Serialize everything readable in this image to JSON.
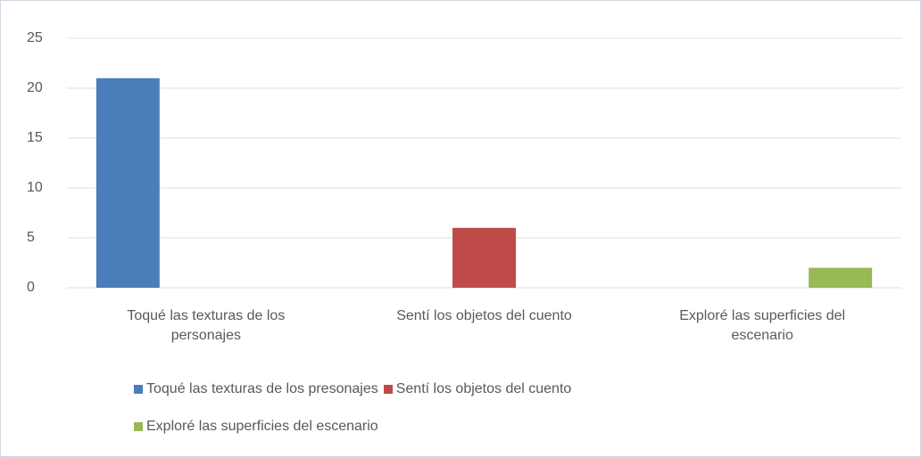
{
  "chart_data": {
    "type": "bar",
    "categories": [
      "Toqué las texturas de los personajes",
      "Sentí los objetos del cuento",
      "Exploré las superficies del escenario"
    ],
    "series": [
      {
        "name": "Toqué las texturas de los presonajes",
        "color": "#4a7ebb",
        "values": [
          21,
          null,
          null
        ]
      },
      {
        "name": "Sentí los objetos del cuento",
        "color": "#be4b48",
        "values": [
          null,
          6,
          null
        ]
      },
      {
        "name": "Exploré las superficies del escenario",
        "color": "#98b954",
        "values": [
          null,
          null,
          2
        ]
      }
    ],
    "ylim": [
      0,
      25
    ],
    "yticks": [
      0,
      5,
      10,
      15,
      20,
      25
    ],
    "grid": true,
    "legend": "bottom"
  }
}
